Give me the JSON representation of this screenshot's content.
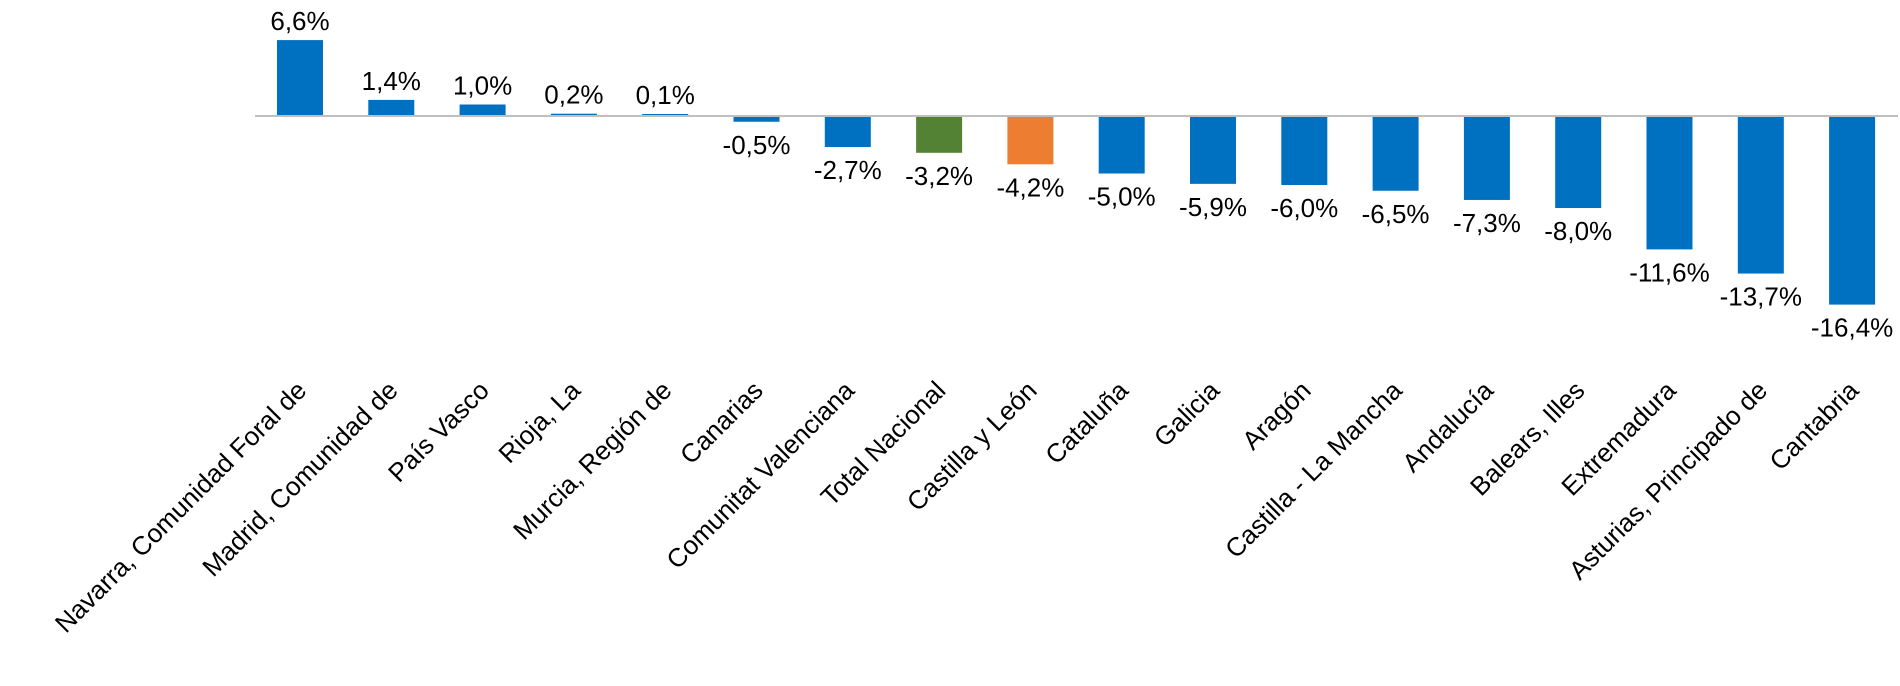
{
  "chart_data": {
    "type": "bar",
    "categories": [
      "Navarra, Comunidad Foral de",
      "Madrid, Comunidad de",
      "País Vasco",
      "Rioja, La",
      "Murcia, Región de",
      "Canarias",
      "Comunitat Valenciana",
      "Total Nacional",
      "Castilla y León",
      "Cataluña",
      "Galicia",
      "Aragón",
      "Castilla - La Mancha",
      "Andalucía",
      "Balears, Illes",
      "Extremadura",
      "Asturias, Principado de",
      "Cantabria"
    ],
    "values": [
      6.6,
      1.4,
      1.0,
      0.2,
      0.1,
      -0.5,
      -2.7,
      -3.2,
      -4.2,
      -5.0,
      -5.9,
      -6.0,
      -6.5,
      -7.3,
      -8.0,
      -11.6,
      -13.7,
      -16.4
    ],
    "value_labels": [
      "6,6%",
      "1,4%",
      "1,0%",
      "0,2%",
      "0,1%",
      "-0,5%",
      "-2,7%",
      "-3,2%",
      "-4,2%",
      "-5,0%",
      "-5,9%",
      "-6,0%",
      "-6,5%",
      "-7,3%",
      "-8,0%",
      "-11,6%",
      "-13,7%",
      "-16,4%"
    ],
    "colors": {
      "default": "#0070C0",
      "Total Nacional": "#548235",
      "Castilla y León": "#ED7D31",
      "axis": "#BFBFBF"
    },
    "title": "",
    "xlabel": "",
    "ylabel": "",
    "grid": false,
    "legend": "none"
  }
}
